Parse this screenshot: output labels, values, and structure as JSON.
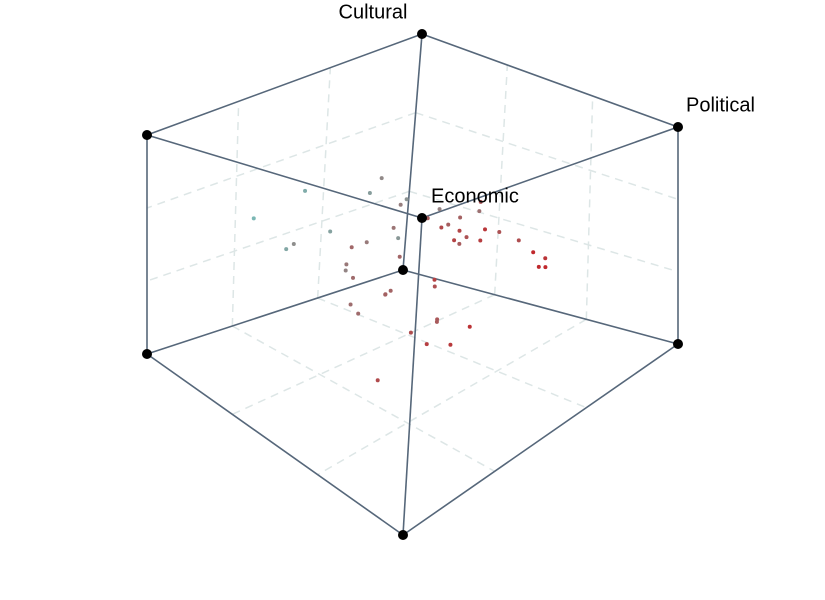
{
  "chart_data": {
    "type": "scatter3d",
    "axis_labels": {
      "political": "Political",
      "economic": "Economic",
      "cultural": "Cultural"
    },
    "grid": true,
    "color_scale": [
      "#7ab8b5",
      "#c0282c"
    ],
    "points": {
      "political": [
        0.1,
        0.3,
        -0.2,
        0.5,
        0.05,
        -0.4,
        0.2,
        0.6,
        -0.1,
        0.35,
        0.15,
        -0.55,
        0.45,
        0.0,
        0.25,
        -0.3,
        0.7,
        0.1,
        -0.15,
        0.4,
        0.05,
        0.3,
        -0.05,
        0.55,
        0.2,
        -0.7,
        0.15,
        0.8,
        -0.25,
        0.35,
        0.12,
        0.42,
        -0.35,
        0.62,
        0.08,
        -0.5,
        0.28,
        0.5,
        -0.08,
        0.18,
        0.22,
        0.48,
        -0.6,
        0.72,
        0.02,
        -0.45,
        0.32,
        0.58,
        -0.18,
        0.38
      ],
      "economic": [
        0.2,
        -0.1,
        0.3,
        0.0,
        0.5,
        -0.3,
        0.1,
        -0.4,
        0.25,
        0.35,
        -0.2,
        0.4,
        0.15,
        -0.5,
        0.05,
        0.6,
        -0.25,
        0.3,
        -0.05,
        0.2,
        0.45,
        -0.35,
        0.1,
        0.25,
        -0.15,
        0.5,
        0.35,
        -0.1,
        0.0,
        -0.45,
        0.28,
        0.08,
        -0.3,
        0.18,
        0.55,
        0.12,
        -0.22,
        0.38,
        0.42,
        -0.08,
        0.02,
        0.32,
        0.22,
        -0.28,
        0.48,
        -0.12,
        0.15,
        0.05,
        -0.38,
        0.62
      ],
      "cultural": [
        0.1,
        0.2,
        -0.1,
        0.3,
        0.05,
        -0.2,
        0.4,
        0.0,
        0.15,
        -0.3,
        0.25,
        -0.05,
        0.35,
        0.1,
        -0.4,
        0.2,
        0.05,
        -0.15,
        0.3,
        0.45,
        -0.25,
        0.12,
        0.22,
        -0.35,
        0.08,
        0.18,
        -0.1,
        0.28,
        0.5,
        0.02,
        -0.12,
        0.38,
        0.15,
        -0.22,
        0.32,
        0.0,
        0.42,
        -0.3,
        0.06,
        0.26,
        -0.45,
        0.14,
        0.34,
        0.04,
        -0.18,
        0.24,
        -0.06,
        0.44,
        0.1,
        -0.5
      ]
    }
  }
}
